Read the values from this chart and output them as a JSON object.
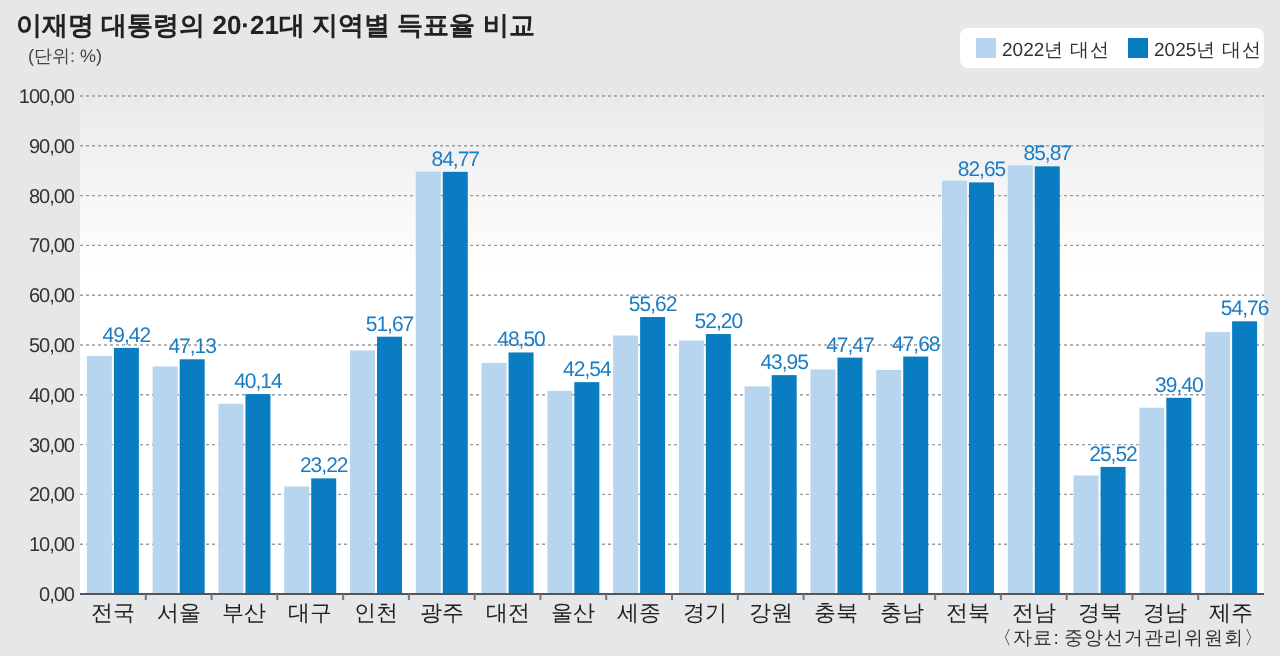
{
  "chart_data": {
    "type": "bar",
    "title": "이재명 대통령의 20·21대 지역별 득표율 비교",
    "subtitle": "(단위: %)",
    "categories": [
      "전국",
      "서울",
      "부산",
      "대구",
      "인천",
      "광주",
      "대전",
      "울산",
      "세종",
      "경기",
      "강원",
      "충북",
      "충남",
      "전북",
      "전남",
      "경북",
      "경남",
      "제주"
    ],
    "series": [
      {
        "name": "2022년 대선",
        "color": "#b7d5ef",
        "values": [
          47.8,
          45.7,
          38.2,
          21.6,
          48.9,
          84.8,
          46.4,
          40.8,
          51.9,
          50.9,
          41.7,
          45.1,
          45.0,
          83.0,
          86.1,
          23.8,
          37.4,
          52.6
        ]
      },
      {
        "name": "2025년 대선",
        "color": "#0a7dc2",
        "values": [
          49.42,
          47.13,
          40.14,
          23.22,
          51.67,
          84.77,
          48.5,
          42.54,
          55.62,
          52.2,
          43.95,
          47.47,
          47.68,
          82.65,
          85.87,
          25.52,
          39.4,
          54.76
        ],
        "value_labels": [
          "49,42",
          "47,13",
          "40,14",
          "23,22",
          "51,67",
          "84,77",
          "48,50",
          "42,54",
          "55,62",
          "52,20",
          "43,95",
          "47,47",
          "47,68",
          "82,65",
          "85,87",
          "25,52",
          "39,40",
          "54,76"
        ]
      }
    ],
    "ylim": [
      0,
      100
    ],
    "yticks": [
      {
        "value": 0,
        "label": "0,00"
      },
      {
        "value": 10,
        "label": "10,00"
      },
      {
        "value": 20,
        "label": "20,00"
      },
      {
        "value": 30,
        "label": "30,00"
      },
      {
        "value": 40,
        "label": "40,00"
      },
      {
        "value": 50,
        "label": "50,00"
      },
      {
        "value": 60,
        "label": "60,00"
      },
      {
        "value": 70,
        "label": "70,00"
      },
      {
        "value": 80,
        "label": "80,00"
      },
      {
        "value": 90,
        "label": "90,00"
      },
      {
        "value": 100,
        "label": "100,00"
      }
    ],
    "grid": "y",
    "legend": "top right",
    "annotations": [
      "〈자료: 중앙선거관리위원회〉"
    ]
  }
}
